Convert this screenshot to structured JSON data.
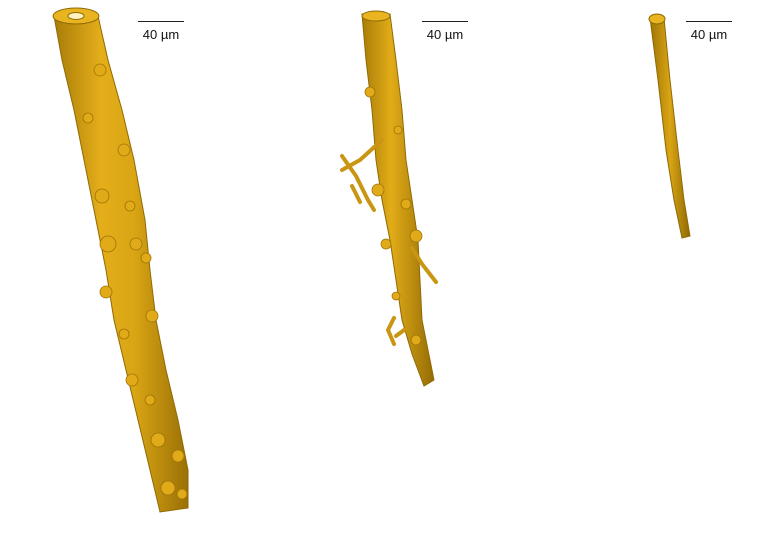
{
  "panels": [
    {
      "scale_label": "40 µm"
    },
    {
      "scale_label": "40 µm"
    },
    {
      "scale_label": "40 µm"
    }
  ],
  "colors": {
    "fiber_main": "#D9A514",
    "fiber_shadow": "#9E7405",
    "fiber_highlight": "#F2C335",
    "background": "#FFFFFF"
  }
}
